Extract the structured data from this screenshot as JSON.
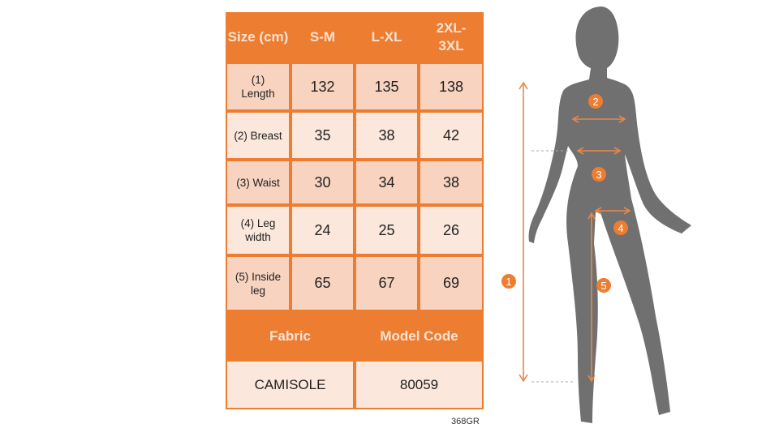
{
  "table": {
    "header": [
      "Size (cm)",
      "S-M",
      "L-XL",
      "2XL-3XL"
    ],
    "rows": [
      {
        "label": "(1) Length",
        "values": [
          "132",
          "135",
          "138"
        ]
      },
      {
        "label": "(2) Breast",
        "values": [
          "35",
          "38",
          "42"
        ]
      },
      {
        "label": "(3) Waist",
        "values": [
          "30",
          "34",
          "38"
        ]
      },
      {
        "label": "(4) Leg width",
        "values": [
          "24",
          "25",
          "26"
        ]
      },
      {
        "label": "(5) Inside leg",
        "values": [
          "65",
          "67",
          "69"
        ]
      }
    ],
    "fabric_label": "Fabric",
    "model_code_label": "Model Code",
    "fabric_value": "CAMISOLE",
    "model_code_value": "80059"
  },
  "figure": {
    "markers": [
      "1",
      "2",
      "3",
      "4",
      "5"
    ],
    "accent_color": "#ED7D31",
    "silhouette_color": "#707070"
  },
  "footer_code": "368GR"
}
